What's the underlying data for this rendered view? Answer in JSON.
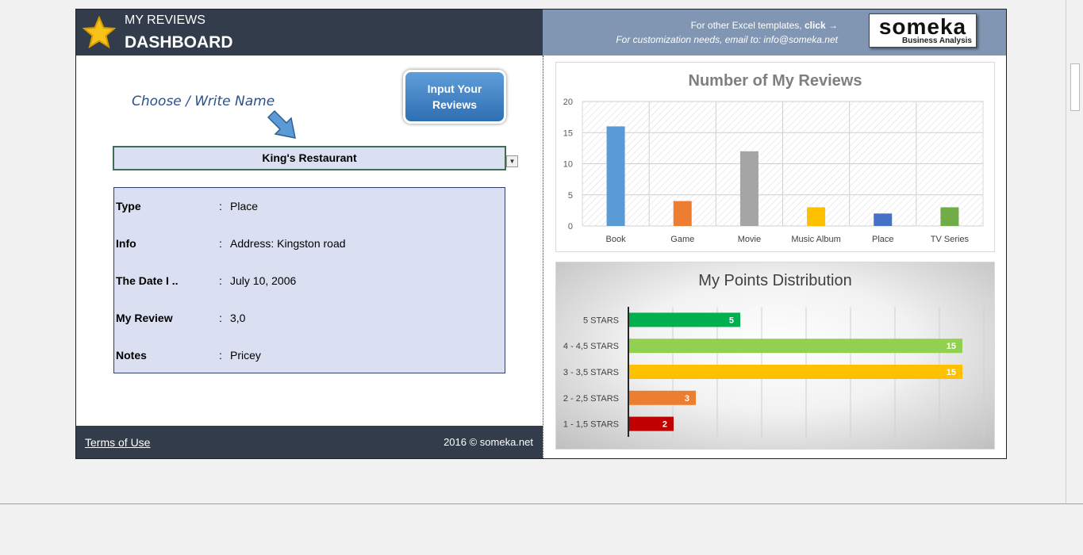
{
  "header": {
    "subtitle": "MY REVIEWS",
    "title": "DASHBOARD",
    "templates_prefix": "For other Excel templates, ",
    "templates_link": "click →",
    "customization": "For customization needs, email to: info@someka.net",
    "logo_text": "someka",
    "logo_sub": "Business Analysis"
  },
  "left": {
    "choose_label": "Choose / Write Name",
    "input_button": "Input Your Reviews",
    "selected_name": "King's Restaurant",
    "details": [
      {
        "label": "Type",
        "value": "Place"
      },
      {
        "label": "Info",
        "value": "Address: Kingston road"
      },
      {
        "label": "The Date I ..",
        "value": "July 10, 2006"
      },
      {
        "label": "My Review",
        "value": "3,0"
      },
      {
        "label": "Notes",
        "value": "Pricey"
      }
    ],
    "colon": ":"
  },
  "footer": {
    "terms": "Terms of Use",
    "copyright": "2016 © someka.net"
  },
  "colors": {
    "header_dark": "#323c4a",
    "header_light": "#8196b3",
    "button_blue": "#2e6fb3"
  },
  "chart_data": [
    {
      "type": "bar",
      "title": "Number of My Reviews",
      "categories": [
        "Book",
        "Game",
        "Movie",
        "Music Album",
        "Place",
        "TV Series"
      ],
      "values": [
        16,
        4,
        12,
        3,
        2,
        3
      ],
      "colors": [
        "#5b9bd5",
        "#ed7d31",
        "#a5a5a5",
        "#ffc000",
        "#4472c4",
        "#70ad47"
      ],
      "ylim": [
        0,
        20
      ],
      "yticks": [
        0,
        5,
        10,
        15,
        20
      ],
      "grid": true
    },
    {
      "type": "bar",
      "orientation": "horizontal",
      "title": "My Points Distribution",
      "categories": [
        "5 STARS",
        "4 - 4,5 STARS",
        "3 - 3,5 STARS",
        "2 - 2,5 STARS",
        "1 - 1,5 STARS"
      ],
      "values": [
        5,
        15,
        15,
        3,
        2
      ],
      "colors": [
        "#00b050",
        "#92d050",
        "#ffc000",
        "#ed7d31",
        "#c00000"
      ],
      "xlim": [
        0,
        16
      ],
      "grid": true
    }
  ]
}
